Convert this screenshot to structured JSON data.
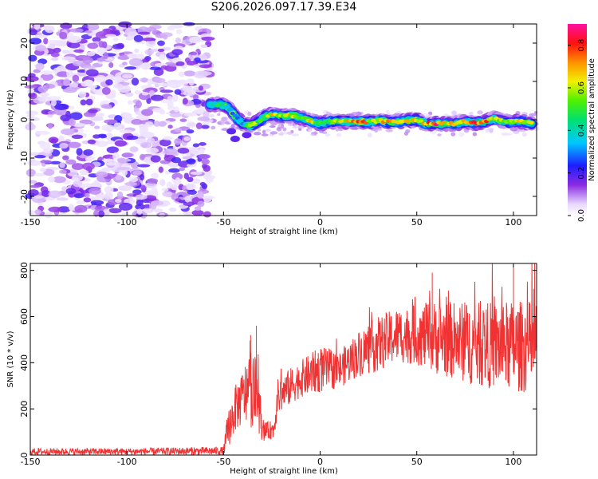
{
  "title": "S206.2026.097.17.39.E34",
  "chart_data": [
    {
      "type": "heatmap",
      "title": "S206.2026.097.17.39.E34",
      "xlabel": "Height of straight line (km)",
      "ylabel": "Frequency (Hz)",
      "xlim": [
        -150,
        112
      ],
      "ylim": [
        -25,
        25
      ],
      "xticks": [
        -150,
        -100,
        -50,
        0,
        50,
        100
      ],
      "yticks": [
        -20,
        -10,
        0,
        10,
        20
      ],
      "colorbar": {
        "label": "Normalized spectral amplitude",
        "range": [
          0.0,
          0.9
        ],
        "ticks": [
          "0.0",
          "0.2",
          "0.4",
          "0.6",
          "0.8"
        ],
        "tick_values": [
          0.0,
          0.2,
          0.4,
          0.6,
          0.8
        ]
      },
      "noise_region_x": [
        -150,
        -57
      ],
      "signal_track": [
        {
          "x": -57,
          "f": 4,
          "a": 0.45
        },
        {
          "x": -52,
          "f": 4,
          "a": 0.5
        },
        {
          "x": -47,
          "f": 3,
          "a": 0.35
        },
        {
          "x": -44,
          "f": 1,
          "a": 0.3
        },
        {
          "x": -40,
          "f": -1,
          "a": 0.35
        },
        {
          "x": -36,
          "f": -1.5,
          "a": 0.75
        },
        {
          "x": -32,
          "f": -0.5,
          "a": 0.55
        },
        {
          "x": -28,
          "f": 1,
          "a": 0.6
        },
        {
          "x": -24,
          "f": 1.5,
          "a": 0.75
        },
        {
          "x": -20,
          "f": 1,
          "a": 0.6
        },
        {
          "x": -15,
          "f": 1.2,
          "a": 0.7
        },
        {
          "x": -10,
          "f": 0.5,
          "a": 0.6
        },
        {
          "x": -5,
          "f": -0.3,
          "a": 0.75
        },
        {
          "x": 0,
          "f": -1,
          "a": 0.5
        },
        {
          "x": 5,
          "f": -0.5,
          "a": 0.55
        },
        {
          "x": 10,
          "f": -0.5,
          "a": 0.7
        },
        {
          "x": 15,
          "f": -0.5,
          "a": 0.7
        },
        {
          "x": 20,
          "f": -0.5,
          "a": 0.9
        },
        {
          "x": 25,
          "f": -0.5,
          "a": 0.7
        },
        {
          "x": 30,
          "f": -0.3,
          "a": 0.7
        },
        {
          "x": 35,
          "f": -0.5,
          "a": 0.75
        },
        {
          "x": 40,
          "f": -0.5,
          "a": 0.75
        },
        {
          "x": 45,
          "f": -0.2,
          "a": 0.75
        },
        {
          "x": 50,
          "f": 0,
          "a": 0.7
        },
        {
          "x": 55,
          "f": -1,
          "a": 0.75
        },
        {
          "x": 60,
          "f": -1,
          "a": 0.9
        },
        {
          "x": 65,
          "f": -1,
          "a": 0.7
        },
        {
          "x": 70,
          "f": -1,
          "a": 0.75
        },
        {
          "x": 75,
          "f": -0.5,
          "a": 0.7
        },
        {
          "x": 80,
          "f": -0.8,
          "a": 0.9
        },
        {
          "x": 85,
          "f": -0.5,
          "a": 0.8
        },
        {
          "x": 90,
          "f": 0.3,
          "a": 0.7
        },
        {
          "x": 95,
          "f": -0.5,
          "a": 0.6
        },
        {
          "x": 100,
          "f": -0.5,
          "a": 0.7
        },
        {
          "x": 105,
          "f": -0.5,
          "a": 0.65
        },
        {
          "x": 110,
          "f": -1,
          "a": 0.7
        }
      ]
    },
    {
      "type": "line",
      "xlabel": "Height of straight line (km)",
      "ylabel": "SNR (10 * v/v)",
      "xlim": [
        -150,
        112
      ],
      "ylim": [
        0,
        830
      ],
      "xticks": [
        -150,
        -100,
        -50,
        0,
        50,
        100
      ],
      "yticks": [
        0,
        200,
        400,
        600,
        800
      ],
      "series": [
        {
          "name": "SNR",
          "color": "#f03232",
          "envelope": [
            {
              "x": -150,
              "mean": 15,
              "spread": 15
            },
            {
              "x": -100,
              "mean": 15,
              "spread": 15
            },
            {
              "x": -50,
              "mean": 18,
              "spread": 18
            },
            {
              "x": -48,
              "mean": 100,
              "spread": 80
            },
            {
              "x": -44,
              "mean": 200,
              "spread": 100
            },
            {
              "x": -40,
              "mean": 250,
              "spread": 120
            },
            {
              "x": -36,
              "mean": 300,
              "spread": 180
            },
            {
              "x": -32,
              "mean": 250,
              "spread": 150
            },
            {
              "x": -30,
              "mean": 100,
              "spread": 40
            },
            {
              "x": -24,
              "mean": 110,
              "spread": 40
            },
            {
              "x": -22,
              "mean": 250,
              "spread": 80
            },
            {
              "x": -15,
              "mean": 300,
              "spread": 80
            },
            {
              "x": -10,
              "mean": 330,
              "spread": 80
            },
            {
              "x": 0,
              "mean": 370,
              "spread": 100
            },
            {
              "x": 10,
              "mean": 370,
              "spread": 80
            },
            {
              "x": 20,
              "mean": 440,
              "spread": 100
            },
            {
              "x": 30,
              "mean": 480,
              "spread": 120
            },
            {
              "x": 40,
              "mean": 520,
              "spread": 120
            },
            {
              "x": 50,
              "mean": 520,
              "spread": 130
            },
            {
              "x": 60,
              "mean": 510,
              "spread": 160
            },
            {
              "x": 80,
              "mean": 480,
              "spread": 180
            },
            {
              "x": 100,
              "mean": 470,
              "spread": 200
            },
            {
              "x": 112,
              "mean": 470,
              "spread": 200
            }
          ],
          "highlights": [
            {
              "x": -33,
              "y": 560
            },
            {
              "x": -36,
              "y": 520
            },
            {
              "x": 58,
              "y": 790
            },
            {
              "x": 100,
              "y": 815
            },
            {
              "x": 111,
              "y": 830
            }
          ]
        }
      ]
    }
  ]
}
